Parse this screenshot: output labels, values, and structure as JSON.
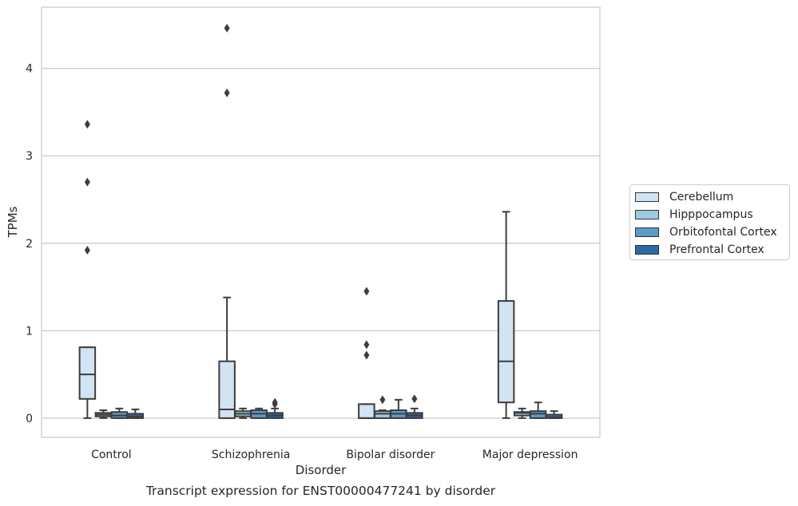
{
  "chart_data": {
    "type": "box",
    "title": "",
    "caption": "Transcript expression for ENST00000477241 by disorder",
    "xlabel": "Disorder",
    "ylabel": "TPMs",
    "ylim": [
      -0.22,
      4.7
    ],
    "yticks": [
      0,
      1,
      2,
      3,
      4
    ],
    "grid": "horizontal",
    "legend_position": "right",
    "categories": [
      "Control",
      "Schizophrenia",
      "Bipolar disorder",
      "Major depression"
    ],
    "series": [
      {
        "name": "Cerebellum",
        "color": "#d2e3f3",
        "boxes": [
          {
            "whislo": 0.0,
            "q1": 0.22,
            "med": 0.5,
            "q3": 0.81,
            "whishi": 0.81,
            "fliers": [
              1.92,
              2.7,
              3.36
            ]
          },
          {
            "whislo": 0.0,
            "q1": 0.0,
            "med": 0.1,
            "q3": 0.65,
            "whishi": 1.38,
            "fliers": [
              3.72,
              4.46
            ]
          },
          {
            "whislo": 0.0,
            "q1": 0.0,
            "med": 0.0,
            "q3": 0.16,
            "whishi": 0.16,
            "fliers": [
              0.72,
              0.84,
              1.45
            ]
          },
          {
            "whislo": 0.0,
            "q1": 0.18,
            "med": 0.65,
            "q3": 1.34,
            "whishi": 2.36,
            "fliers": []
          }
        ]
      },
      {
        "name": "Hipppocampus",
        "color": "#9ecae1",
        "boxes": [
          {
            "whislo": 0.0,
            "q1": 0.02,
            "med": 0.04,
            "q3": 0.06,
            "whishi": 0.09,
            "fliers": []
          },
          {
            "whislo": 0.0,
            "q1": 0.02,
            "med": 0.05,
            "q3": 0.08,
            "whishi": 0.11,
            "fliers": []
          },
          {
            "whislo": 0.0,
            "q1": 0.0,
            "med": 0.05,
            "q3": 0.08,
            "whishi": 0.09,
            "fliers": [
              0.21
            ]
          },
          {
            "whislo": 0.0,
            "q1": 0.03,
            "med": 0.06,
            "q3": 0.07,
            "whishi": 0.11,
            "fliers": []
          }
        ]
      },
      {
        "name": "Orbitofontal Cortex",
        "color": "#5b9ac9",
        "boxes": [
          {
            "whislo": 0.0,
            "q1": 0.0,
            "med": 0.03,
            "q3": 0.07,
            "whishi": 0.11,
            "fliers": []
          },
          {
            "whislo": 0.0,
            "q1": 0.0,
            "med": 0.05,
            "q3": 0.09,
            "whishi": 0.11,
            "fliers": []
          },
          {
            "whislo": 0.0,
            "q1": 0.0,
            "med": 0.05,
            "q3": 0.09,
            "whishi": 0.21,
            "fliers": []
          },
          {
            "whislo": 0.0,
            "q1": 0.0,
            "med": 0.05,
            "q3": 0.08,
            "whishi": 0.18,
            "fliers": []
          }
        ]
      },
      {
        "name": "Prefrontal Cortex",
        "color": "#2c6aa6",
        "boxes": [
          {
            "whislo": 0.0,
            "q1": 0.0,
            "med": 0.02,
            "q3": 0.05,
            "whishi": 0.1,
            "fliers": []
          },
          {
            "whislo": 0.0,
            "q1": 0.0,
            "med": 0.03,
            "q3": 0.06,
            "whishi": 0.11,
            "fliers": [
              0.16,
              0.18
            ]
          },
          {
            "whislo": 0.0,
            "q1": 0.0,
            "med": 0.03,
            "q3": 0.06,
            "whishi": 0.11,
            "fliers": [
              0.22
            ]
          },
          {
            "whislo": 0.0,
            "q1": 0.0,
            "med": 0.01,
            "q3": 0.04,
            "whishi": 0.08,
            "fliers": []
          }
        ]
      }
    ]
  }
}
